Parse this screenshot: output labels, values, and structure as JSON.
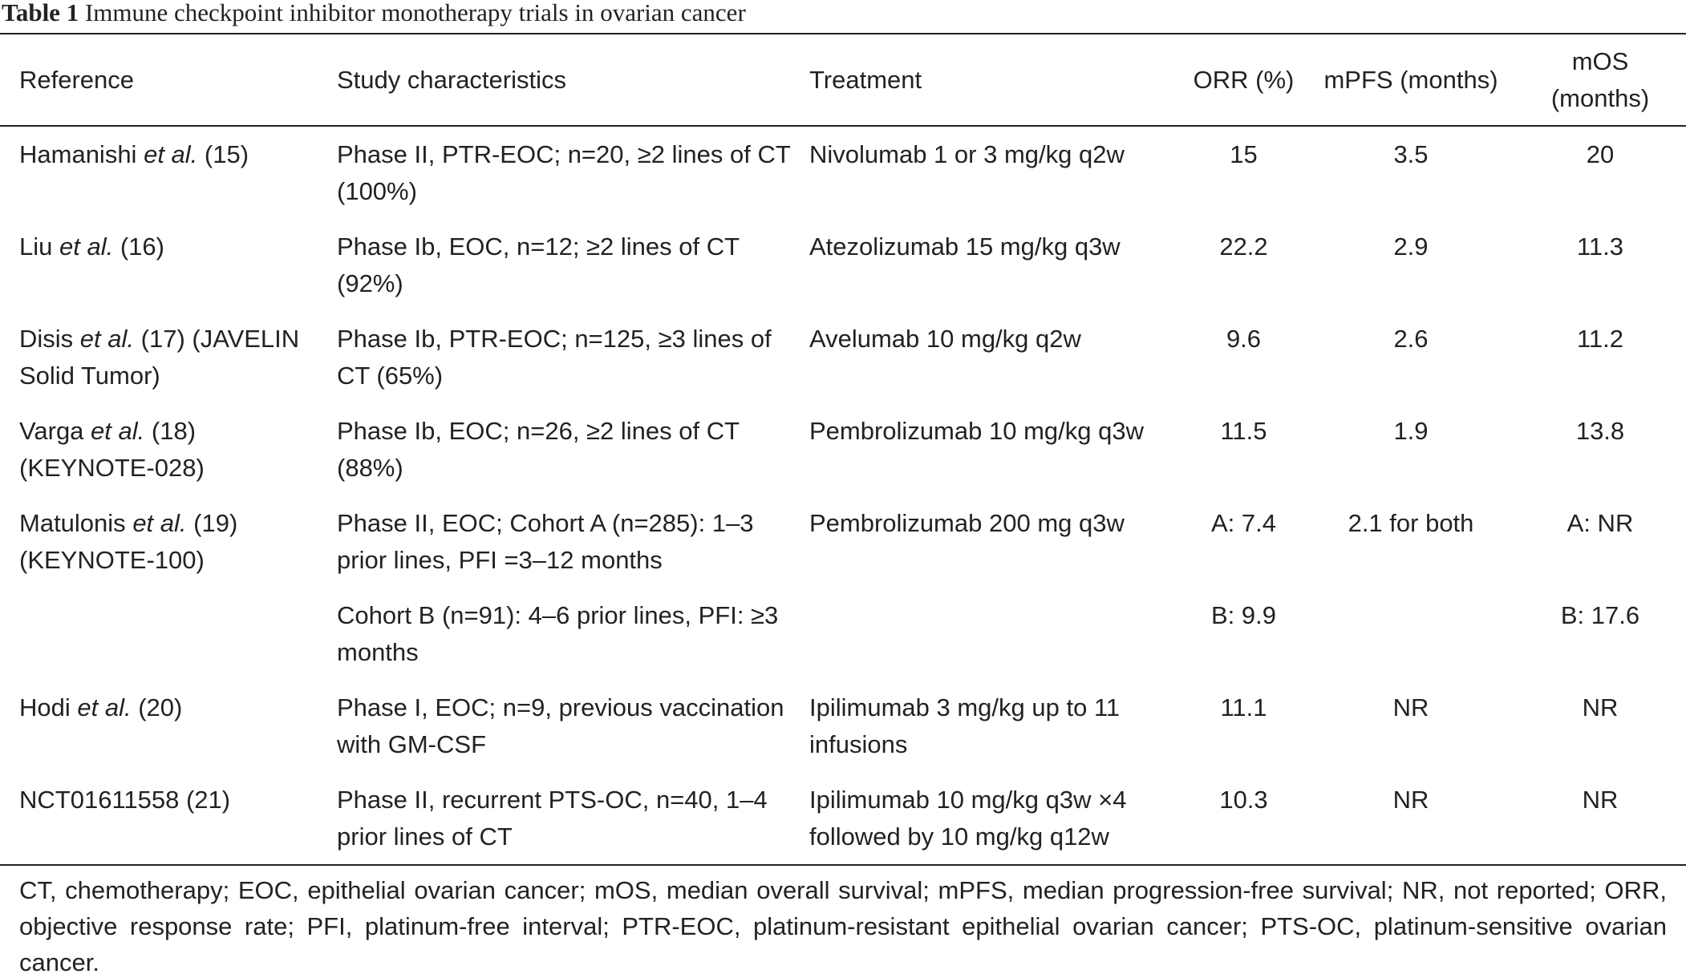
{
  "title": {
    "label": "Table 1",
    "text": "Immune checkpoint inhibitor monotherapy trials in ovarian cancer"
  },
  "table": {
    "headers": [
      "Reference",
      "Study characteristics",
      "Treatment",
      "ORR (%)",
      "mPFS (months)",
      "mOS (months)"
    ],
    "rows": [
      {
        "reference": {
          "name": "Hamanishi",
          "etal": "et al.",
          "ref": "(15)"
        },
        "characteristics": "Phase II, PTR-EOC; n=20, ≥2 lines of CT (100%)",
        "treatment": "Nivolumab 1 or 3 mg/kg q2w",
        "orr": "15",
        "mpfs": "3.5",
        "mos": "20"
      },
      {
        "reference": {
          "name": "Liu",
          "etal": "et al.",
          "ref": "(16)"
        },
        "characteristics": "Phase Ib, EOC, n=12; ≥2 lines of CT (92%)",
        "treatment": "Atezolizumab 15 mg/kg q3w",
        "orr": "22.2",
        "mpfs": "2.9",
        "mos": "11.3"
      },
      {
        "reference": {
          "name": "Disis",
          "etal": "et al.",
          "ref": "(17) (JAVELIN Solid Tumor)"
        },
        "characteristics": "Phase Ib, PTR-EOC; n=125, ≥3 lines of CT (65%)",
        "treatment": "Avelumab 10 mg/kg q2w",
        "orr": "9.6",
        "mpfs": "2.6",
        "mos": "11.2"
      },
      {
        "reference": {
          "name": "Varga",
          "etal": "et al.",
          "ref": "(18) (KEYNOTE-028)"
        },
        "characteristics": "Phase Ib, EOC; n=26, ≥2 lines of CT (88%)",
        "treatment": "Pembrolizumab 10 mg/kg q3w",
        "orr": "11.5",
        "mpfs": "1.9",
        "mos": "13.8"
      },
      {
        "reference": {
          "name": "Matulonis",
          "etal": "et al.",
          "ref": "(19) (KEYNOTE-100)"
        },
        "characteristics": "Phase II, EOC; Cohort A (n=285): 1–3 prior lines, PFI =3–12 months",
        "treatment": "Pembrolizumab 200 mg q3w",
        "orr": "A: 7.4",
        "mpfs": "2.1 for both",
        "mos": "A: NR"
      },
      {
        "characteristics": "Cohort B (n=91): 4–6 prior lines, PFI: ≥3 months",
        "orr": "B: 9.9",
        "mos": "B: 17.6"
      },
      {
        "reference": {
          "name": "Hodi",
          "etal": "et al.",
          "ref": "(20)"
        },
        "characteristics": "Phase I, EOC; n=9, previous vaccination with GM-CSF",
        "treatment": "Ipilimumab 3 mg/kg up to 11 infusions",
        "orr": "11.1",
        "mpfs": "NR",
        "mos": "NR"
      },
      {
        "reference": {
          "name": "NCT01611558",
          "ref": "(21)"
        },
        "characteristics": "Phase II, recurrent PTS-OC, n=40, 1–4 prior lines of CT",
        "treatment": "Ipilimumab 10 mg/kg q3w ×4 followed by 10 mg/kg q12w",
        "orr": "10.3",
        "mpfs": "NR",
        "mos": "NR"
      }
    ]
  },
  "footnote": "CT, chemotherapy; EOC, epithelial ovarian cancer; mOS, median overall survival; mPFS, median progression-free survival; NR, not reported; ORR, objective response rate; PFI, platinum-free interval; PTR-EOC, platinum-resistant epithelial ovarian cancer; PTS-OC, platinum-sensitive ovarian cancer."
}
